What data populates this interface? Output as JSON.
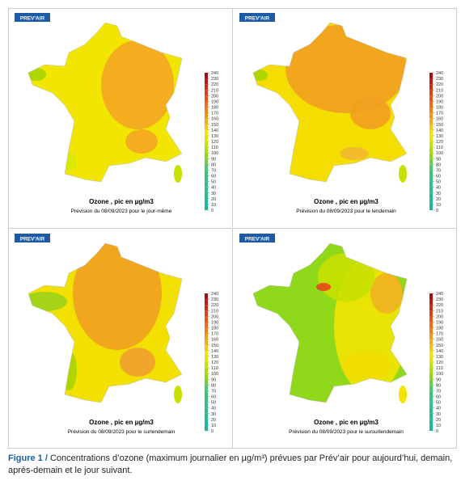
{
  "logo": "PREV'AIR",
  "colorbar": {
    "ticks": [
      0,
      10,
      20,
      30,
      40,
      50,
      60,
      70,
      80,
      90,
      100,
      110,
      120,
      130,
      140,
      150,
      160,
      170,
      180,
      190,
      200,
      210,
      220,
      230,
      240
    ]
  },
  "panels": [
    {
      "title": "Ozone , pic en µg/m3",
      "subtitle": "Prévision du 08/09/2023 pour le jour-même"
    },
    {
      "title": "Ozone , pic en µg/m3",
      "subtitle": "Prévision du 08/09/2023 pour le lendemain"
    },
    {
      "title": "Ozone , pic en µg/m3",
      "subtitle": "Prévision du 08/09/2023 pour le surlendemain"
    },
    {
      "title": "Ozone , pic en µg/m3",
      "subtitle": "Prévision du 08/09/2023 pour le sursurlendemain"
    }
  ],
  "caption": {
    "label": "Figure 1 /",
    "text": "Concentrations d’ozone (maximum journalier en µg/m³) prévues par Prév’air pour aujourd’hui, demain, après-demain et le jour suivant."
  }
}
